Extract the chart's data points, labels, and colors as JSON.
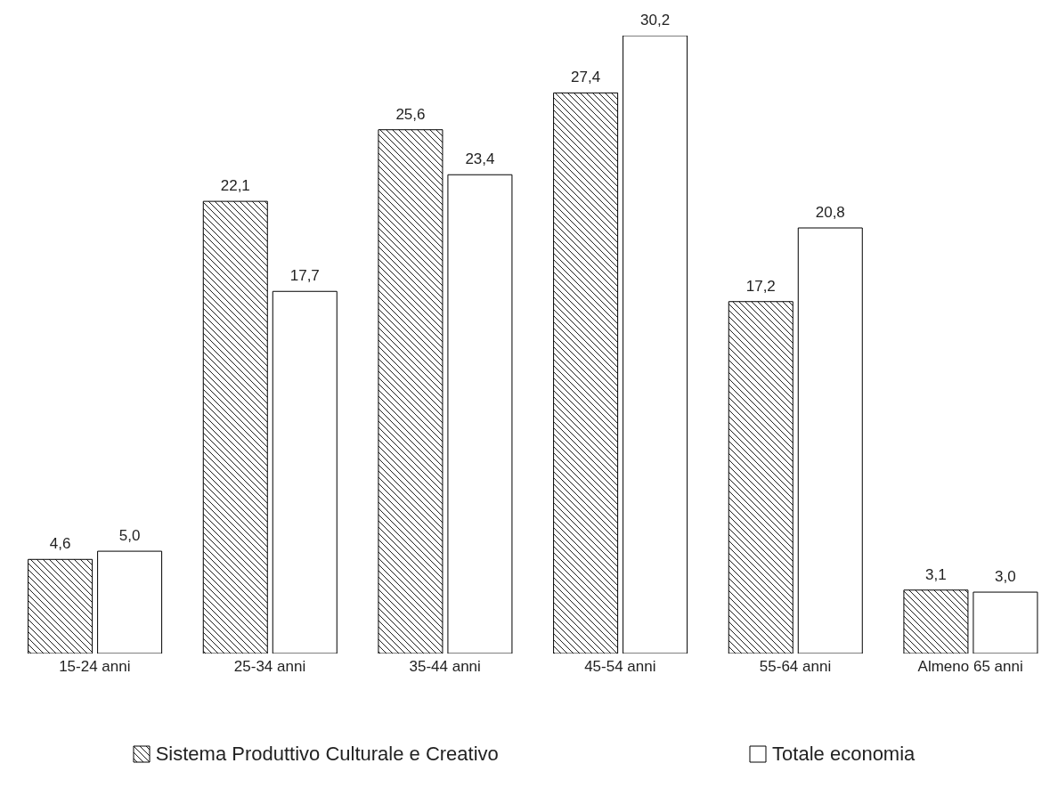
{
  "chart_data": {
    "type": "bar",
    "categories": [
      "15-24 anni",
      "25-34 anni",
      "35-44 anni",
      "45-54 anni",
      "55-64 anni",
      "Almeno 65 anni"
    ],
    "series": [
      {
        "name": "Sistema Produttivo Culturale e Creativo",
        "color": "#000000",
        "values": [
          4.6,
          22.1,
          25.6,
          27.4,
          17.2,
          3.1
        ],
        "value_labels": [
          "4,6",
          "22,1",
          "25,6",
          "27,4",
          "17,2",
          "3,1"
        ]
      },
      {
        "name": "Totale economia",
        "color": "#ffffff",
        "values": [
          5.0,
          17.7,
          23.4,
          30.2,
          20.8,
          3.0
        ],
        "value_labels": [
          "5,0",
          "17,7",
          "23,4",
          "30,2",
          "20,8",
          "3,0"
        ]
      }
    ],
    "grid": false,
    "legend": "bottom"
  }
}
